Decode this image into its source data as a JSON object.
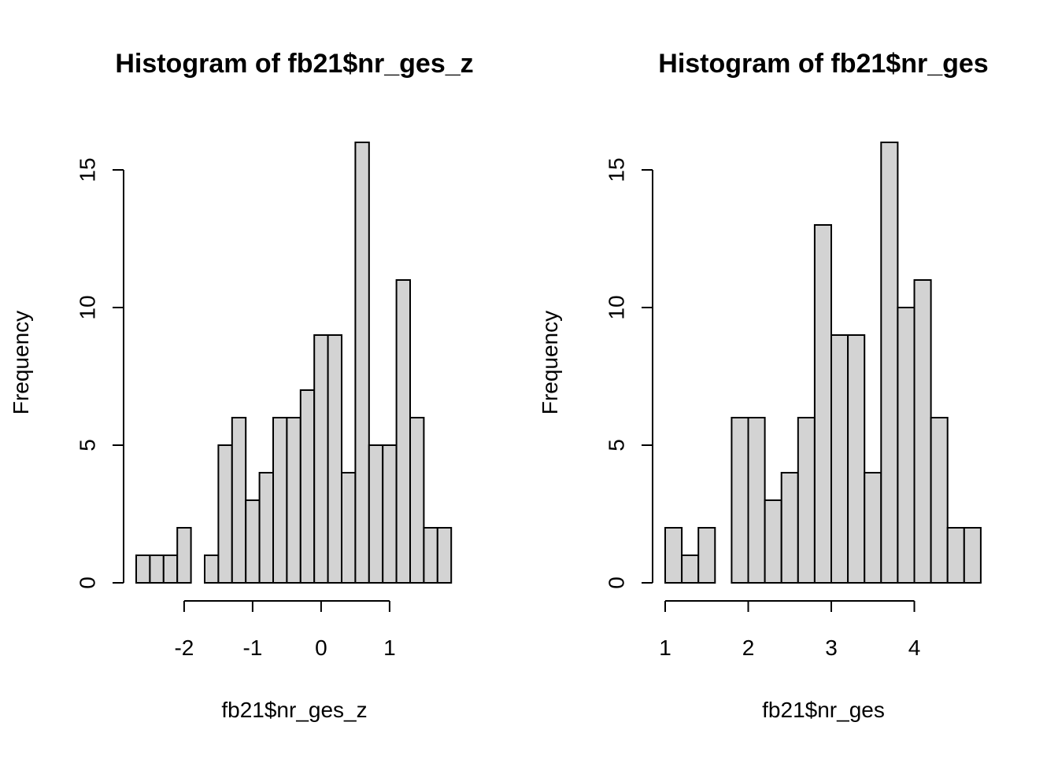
{
  "chart_data": [
    {
      "type": "bar",
      "title": "Histogram of fb21$nr_ges_z",
      "xlabel": "fb21$nr_ges_z",
      "ylabel": "Frequency",
      "bin_start": -2.7,
      "bin_width": 0.2,
      "values": [
        1,
        1,
        1,
        2,
        0,
        1,
        5,
        6,
        3,
        4,
        6,
        6,
        7,
        9,
        9,
        4,
        16,
        5,
        5,
        11,
        6,
        2,
        2
      ],
      "xlim": [
        -2.7,
        1.9
      ],
      "ylim": [
        0,
        16
      ],
      "x_ticks": [
        -2,
        -1,
        0,
        1
      ],
      "x_tick_labels": [
        "-2",
        "-1",
        "0",
        "1"
      ],
      "x_axis_range": [
        -2,
        1
      ],
      "y_ticks": [
        0,
        5,
        10,
        15
      ],
      "y_tick_labels": [
        "0",
        "5",
        "10",
        "15"
      ],
      "grid": false,
      "legend": "none",
      "bar_color": "#d3d3d3"
    },
    {
      "type": "bar",
      "title": "Histogram of fb21$nr_ges",
      "xlabel": "fb21$nr_ges",
      "ylabel": "Frequency",
      "bin_start": 1.0,
      "bin_width": 0.2,
      "values": [
        2,
        1,
        2,
        0,
        6,
        6,
        3,
        4,
        6,
        13,
        9,
        9,
        4,
        16,
        10,
        11,
        6,
        2,
        2
      ],
      "xlim": [
        1.0,
        4.8
      ],
      "ylim": [
        0,
        16
      ],
      "x_ticks": [
        1,
        2,
        3,
        4
      ],
      "x_tick_labels": [
        "1",
        "2",
        "3",
        "4"
      ],
      "x_axis_range": [
        1,
        4
      ],
      "y_ticks": [
        0,
        5,
        10,
        15
      ],
      "y_tick_labels": [
        "0",
        "5",
        "10",
        "15"
      ],
      "grid": false,
      "legend": "none",
      "bar_color": "#d3d3d3"
    }
  ]
}
